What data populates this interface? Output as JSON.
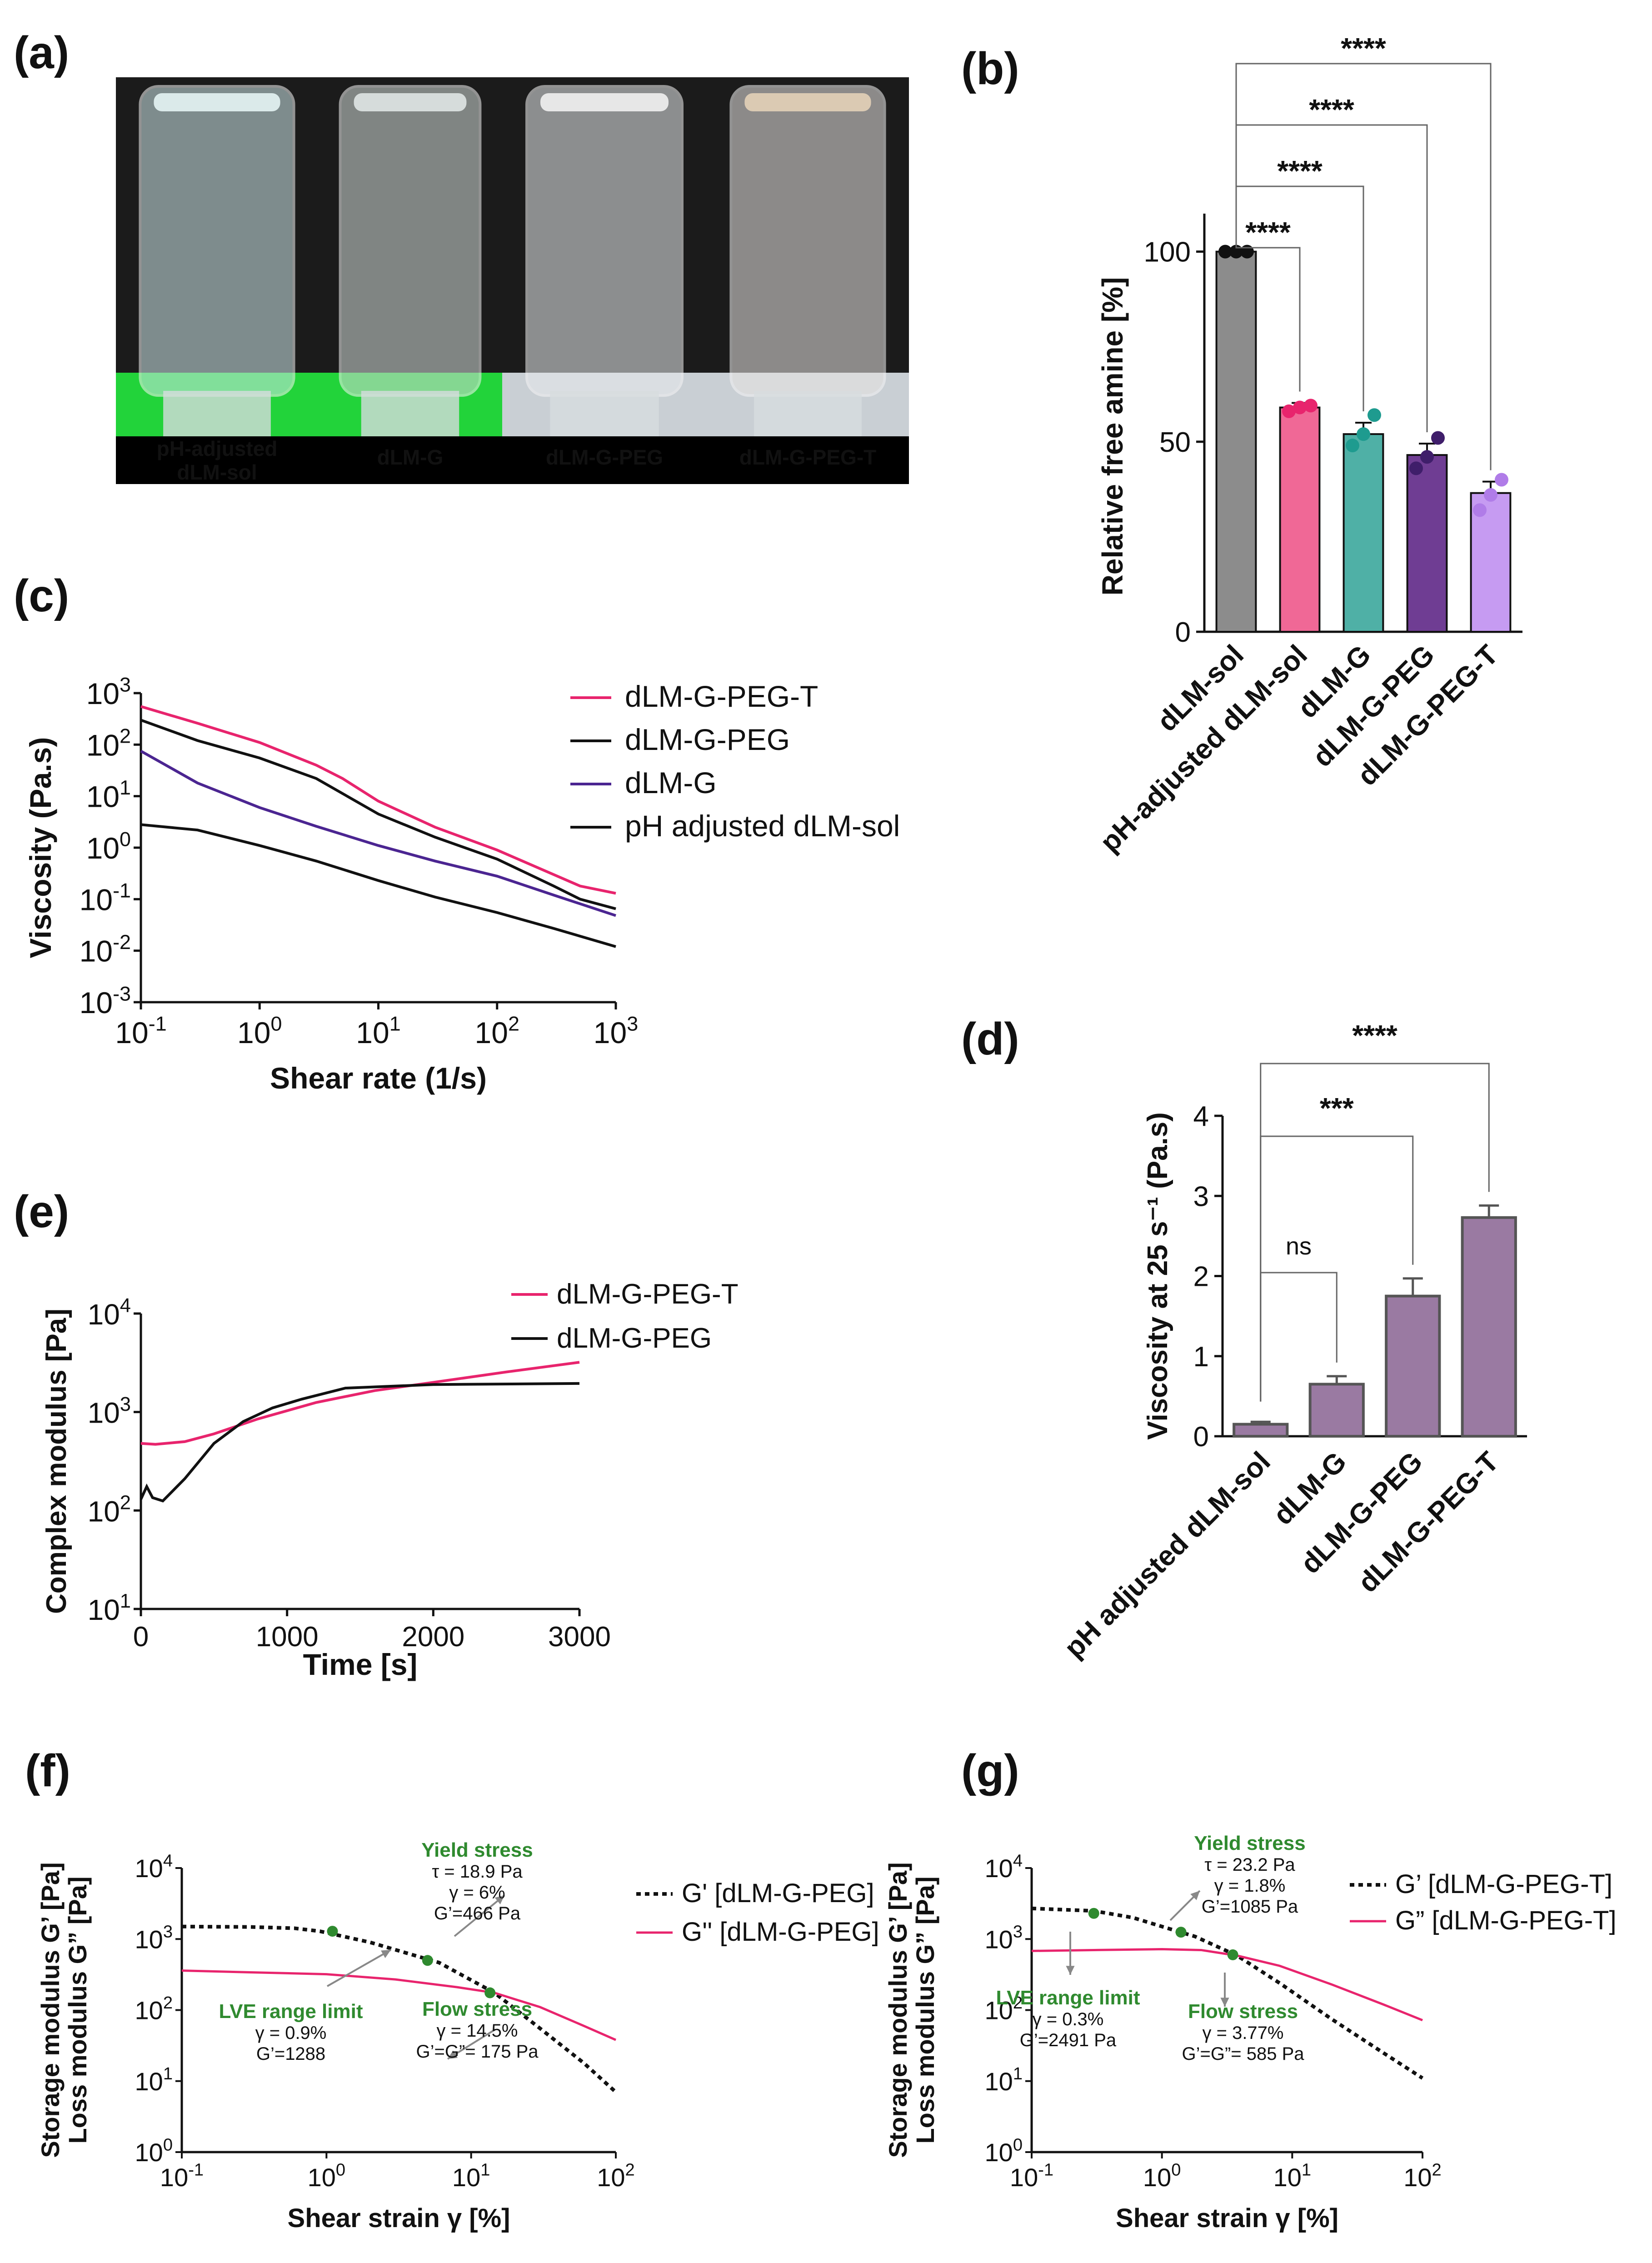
{
  "panels": {
    "a": {
      "letter": "(a)",
      "vials": [
        {
          "label_lines": [
            "pH-adjusted",
            "dLM-sol"
          ],
          "liquid_color": "#e6f4f4",
          "tint": "#cfe9ea",
          "base_color": "#22d33a"
        },
        {
          "label_lines": [
            "dLM-G"
          ],
          "liquid_color": "#dfe6e4",
          "tint": "#d4dcd8",
          "base_color": "#22d33a"
        },
        {
          "label_lines": [
            "dLM-G-PEG"
          ],
          "liquid_color": "#f1f1f1",
          "tint": "#e9ecef",
          "base_color": "#c9cfd4"
        },
        {
          "label_lines": [
            "dLM-G-PEG-T"
          ],
          "liquid_color": "#e3d0b8",
          "tint": "#e9e6e4",
          "base_color": "#c9cfd4"
        }
      ]
    },
    "b": {
      "letter": "(b)",
      "sig": [
        "****",
        "****",
        "****",
        "****"
      ]
    },
    "c": {
      "letter": "(c)"
    },
    "d": {
      "letter": "(d)",
      "sig": [
        "ns",
        "***",
        "****"
      ]
    },
    "e": {
      "letter": "(e)"
    },
    "f": {
      "letter": "(f)"
    },
    "g": {
      "letter": "(g)"
    }
  },
  "chart_data": [
    {
      "id": "b",
      "type": "bar",
      "ylabel": "Relative free amine [%]",
      "ylim": [
        0,
        110
      ],
      "yticks": [
        0,
        50,
        100
      ],
      "categories": [
        "dLM-sol",
        "pH-adjusted dLM-sol",
        "dLM-G",
        "dLM-G-PEG",
        "dLM-G-PEG-T"
      ],
      "values": [
        100,
        59,
        52,
        46.5,
        36.5
      ],
      "errors": [
        0.5,
        1.2,
        3.0,
        3.0,
        3.0
      ],
      "points": [
        [
          100,
          100,
          100
        ],
        [
          58,
          59,
          59.5
        ],
        [
          49,
          52,
          57
        ],
        [
          43,
          46,
          51
        ],
        [
          32,
          36,
          40
        ]
      ],
      "colors": [
        "#8c8c8c",
        "#f06896",
        "#4fb0a6",
        "#6f3d93",
        "#c69bf2"
      ],
      "dot_colors": [
        "#111111",
        "#e8246d",
        "#1e9b8f",
        "#3f1e6a",
        "#b07ce8"
      ],
      "comparisons": [
        [
          0,
          1
        ],
        [
          0,
          2
        ],
        [
          0,
          3
        ],
        [
          0,
          4
        ]
      ]
    },
    {
      "id": "c",
      "type": "line",
      "yscale": "log",
      "xscale": "log",
      "xlabel": "Shear rate (1/s)",
      "ylabel": "Viscosity (Pa.s)",
      "xlim": [
        0.1,
        1000
      ],
      "ylim": [
        0.001,
        1000
      ],
      "series": [
        {
          "name": "dLM-G-PEG-T",
          "color": "#e8246d",
          "points": [
            [
              0.1,
              550
            ],
            [
              0.3,
              260
            ],
            [
              1,
              110
            ],
            [
              3,
              40
            ],
            [
              5,
              22
            ],
            [
              10,
              8
            ],
            [
              30,
              2.5
            ],
            [
              100,
              0.9
            ],
            [
              300,
              0.3
            ],
            [
              500,
              0.18
            ],
            [
              1000,
              0.13
            ]
          ]
        },
        {
          "name": "dLM-G-PEG",
          "color": "#111111",
          "points": [
            [
              0.1,
              300
            ],
            [
              0.3,
              120
            ],
            [
              1,
              55
            ],
            [
              3,
              22
            ],
            [
              10,
              4.5
            ],
            [
              30,
              1.6
            ],
            [
              100,
              0.6
            ],
            [
              300,
              0.18
            ],
            [
              500,
              0.1
            ],
            [
              1000,
              0.065
            ]
          ]
        },
        {
          "name": "dLM-G",
          "color": "#4b2591",
          "points": [
            [
              0.1,
              75
            ],
            [
              0.3,
              18
            ],
            [
              1,
              6
            ],
            [
              3,
              2.6
            ],
            [
              10,
              1.1
            ],
            [
              30,
              0.55
            ],
            [
              100,
              0.28
            ],
            [
              300,
              0.12
            ],
            [
              1000,
              0.048
            ]
          ]
        },
        {
          "name": "pH adjusted dLM-sol",
          "color": "#111111",
          "points": [
            [
              0.1,
              2.8
            ],
            [
              0.3,
              2.2
            ],
            [
              1,
              1.1
            ],
            [
              3,
              0.55
            ],
            [
              10,
              0.23
            ],
            [
              30,
              0.11
            ],
            [
              100,
              0.055
            ],
            [
              300,
              0.027
            ],
            [
              1000,
              0.012
            ]
          ]
        }
      ]
    },
    {
      "id": "d",
      "type": "bar",
      "ylabel": "Viscosity at 25 s⁻¹ (Pa.s)",
      "ylim": [
        0,
        4
      ],
      "yticks": [
        0,
        1,
        2,
        3,
        4
      ],
      "categories": [
        "pH adjusted dLM-sol",
        "dLM-G",
        "dLM-G-PEG",
        "dLM-G-PEG-T"
      ],
      "values": [
        0.15,
        0.65,
        1.75,
        2.73
      ],
      "errors": [
        0.03,
        0.1,
        0.22,
        0.15
      ],
      "color": "#9a7aa2",
      "edge": "#555555",
      "comparisons": [
        [
          0,
          1
        ],
        [
          0,
          2
        ],
        [
          0,
          3
        ]
      ]
    },
    {
      "id": "e",
      "type": "line",
      "yscale": "log",
      "xlabel": "Time [s]",
      "ylabel": "Complex modulus [Pa]",
      "xlim": [
        0,
        3000
      ],
      "ylim": [
        10,
        10000
      ],
      "xticks": [
        0,
        1000,
        2000,
        3000
      ],
      "series": [
        {
          "name": "dLM-G-PEG-T",
          "color": "#e8246d",
          "points": [
            [
              0,
              480
            ],
            [
              100,
              470
            ],
            [
              300,
              500
            ],
            [
              500,
              600
            ],
            [
              800,
              850
            ],
            [
              1200,
              1250
            ],
            [
              1600,
              1650
            ],
            [
              2000,
              2000
            ],
            [
              2500,
              2550
            ],
            [
              3000,
              3200
            ]
          ]
        },
        {
          "name": "dLM-G-PEG",
          "color": "#111111",
          "points": [
            [
              0,
              130
            ],
            [
              40,
              175
            ],
            [
              80,
              135
            ],
            [
              150,
              125
            ],
            [
              300,
              210
            ],
            [
              500,
              480
            ],
            [
              700,
              800
            ],
            [
              900,
              1100
            ],
            [
              1100,
              1350
            ],
            [
              1400,
              1750
            ],
            [
              2000,
              1900
            ],
            [
              3000,
              1950
            ]
          ]
        }
      ]
    },
    {
      "id": "f",
      "type": "line",
      "yscale": "log",
      "xscale": "log",
      "xlabel": "Shear strain γ [%]",
      "ylabel": [
        "Storage modulus G’ [Pa]",
        "Loss modulus G” [Pa]"
      ],
      "xlim": [
        0.1,
        100
      ],
      "ylim": [
        1,
        10000
      ],
      "series": [
        {
          "name": "G' [dLM-G-PEG]",
          "color": "#111111",
          "dash": true,
          "points": [
            [
              0.1,
              1500
            ],
            [
              0.3,
              1480
            ],
            [
              0.6,
              1420
            ],
            [
              0.9,
              1288
            ],
            [
              2,
              900
            ],
            [
              6,
              466
            ],
            [
              14.5,
              175
            ],
            [
              30,
              55
            ],
            [
              60,
              18
            ],
            [
              100,
              7
            ]
          ]
        },
        {
          "name": "G'' [dLM-G-PEG]",
          "color": "#e8246d",
          "points": [
            [
              0.1,
              360
            ],
            [
              0.3,
              340
            ],
            [
              1,
              320
            ],
            [
              3,
              270
            ],
            [
              8,
              210
            ],
            [
              14.5,
              175
            ],
            [
              30,
              110
            ],
            [
              60,
              60
            ],
            [
              100,
              38
            ]
          ]
        }
      ],
      "markers": [
        [
          1.1,
          1288
        ],
        [
          5,
          500
        ],
        [
          13.5,
          175
        ]
      ],
      "annotations": {
        "yield": {
          "title": "Yield stress",
          "lines": [
            "τ = 18.9 Pa",
            "γ = 6%",
            "G’=466 Pa"
          ]
        },
        "lve": {
          "title": "LVE range limit",
          "lines": [
            "γ = 0.9%",
            "G’=1288"
          ]
        },
        "flow": {
          "title": "Flow stress",
          "lines": [
            "γ = 14.5%",
            "G’=G”= 175 Pa"
          ]
        }
      }
    },
    {
      "id": "g",
      "type": "line",
      "yscale": "log",
      "xscale": "log",
      "xlabel": "Shear strain γ [%]",
      "ylabel": [
        "Storage modulus G’ [Pa]",
        "Loss modulus G” [Pa]"
      ],
      "xlim": [
        0.1,
        100
      ],
      "ylim": [
        1,
        10000
      ],
      "series": [
        {
          "name": "G’ [dLM-G-PEG-T]",
          "color": "#111111",
          "dash": true,
          "points": [
            [
              0.1,
              2700
            ],
            [
              0.3,
              2491
            ],
            [
              0.6,
              2000
            ],
            [
              1,
              1500
            ],
            [
              1.8,
              1085
            ],
            [
              3.77,
              585
            ],
            [
              8,
              240
            ],
            [
              20,
              75
            ],
            [
              50,
              25
            ],
            [
              100,
              11
            ]
          ]
        },
        {
          "name": "G” [dLM-G-PEG-T]",
          "color": "#e8246d",
          "points": [
            [
              0.1,
              680
            ],
            [
              0.3,
              700
            ],
            [
              1,
              720
            ],
            [
              2,
              700
            ],
            [
              3.77,
              585
            ],
            [
              8,
              420
            ],
            [
              20,
              230
            ],
            [
              50,
              120
            ],
            [
              100,
              72
            ]
          ]
        }
      ],
      "markers": [
        [
          0.3,
          2300
        ],
        [
          1.4,
          1250
        ],
        [
          3.5,
          600
        ]
      ],
      "annotations": {
        "yield": {
          "title": "Yield stress",
          "lines": [
            "τ = 23.2 Pa",
            "γ = 1.8%",
            "G’=1085 Pa"
          ]
        },
        "lve": {
          "title": "LVE range limit",
          "lines": [
            "γ = 0.3%",
            "G’=2491 Pa"
          ]
        },
        "flow": {
          "title": "Flow stress",
          "lines": [
            "γ = 3.77%",
            "G’=G”= 585 Pa"
          ]
        }
      }
    }
  ]
}
